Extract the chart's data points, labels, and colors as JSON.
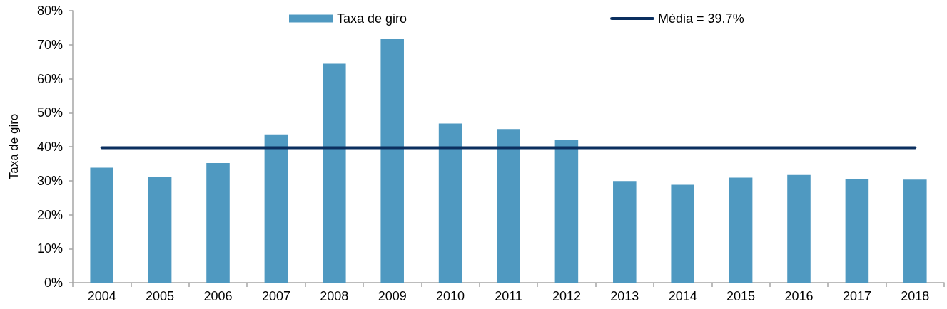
{
  "chart_data": {
    "type": "bar",
    "ylabel": "Taxa de giro",
    "categories": [
      "2004",
      "2005",
      "2006",
      "2007",
      "2008",
      "2009",
      "2010",
      "2011",
      "2012",
      "2013",
      "2014",
      "2015",
      "2016",
      "2017",
      "2018"
    ],
    "series": [
      {
        "name": "Taxa de giro",
        "color": "#4f99c1",
        "values": [
          33.8,
          31.1,
          35.2,
          43.6,
          64.4,
          71.6,
          46.8,
          45.2,
          42.1,
          29.9,
          28.8,
          30.9,
          31.7,
          30.6,
          30.3
        ]
      },
      {
        "name": "Média = 39.7%",
        "type": "line",
        "color": "#0b2f5f",
        "values": [
          39.7,
          39.7,
          39.7,
          39.7,
          39.7,
          39.7,
          39.7,
          39.7,
          39.7,
          39.7,
          39.7,
          39.7,
          39.7,
          39.7,
          39.7
        ]
      }
    ],
    "ylim": [
      0,
      80
    ],
    "yticks": [
      {
        "value": 0,
        "label": "0%"
      },
      {
        "value": 10,
        "label": "10%"
      },
      {
        "value": 20,
        "label": "20%"
      },
      {
        "value": 30,
        "label": "30%"
      },
      {
        "value": 40,
        "label": "40%"
      },
      {
        "value": 50,
        "label": "50%"
      },
      {
        "value": 60,
        "label": "60%"
      },
      {
        "value": 70,
        "label": "70%"
      },
      {
        "value": 80,
        "label": "80%"
      }
    ],
    "legend": "top",
    "marker": "none",
    "line_style": "solid"
  }
}
